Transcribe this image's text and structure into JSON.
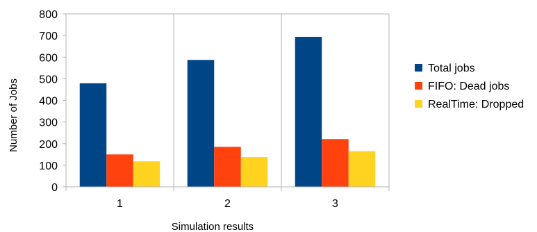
{
  "chart_data": {
    "type": "bar",
    "title": "",
    "xlabel": "Simulation results",
    "ylabel": "Number of Jobs",
    "categories": [
      "1",
      "2",
      "3"
    ],
    "series": [
      {
        "name": "Total jobs",
        "values": [
          479,
          587,
          694
        ],
        "color": "#004586"
      },
      {
        "name": "FIFO: Dead jobs",
        "values": [
          150,
          185,
          221
        ],
        "color": "#ff420e"
      },
      {
        "name": "RealTime: Dropped",
        "values": [
          118,
          138,
          165
        ],
        "color": "#ffd320"
      }
    ],
    "ylim": [
      0,
      800
    ],
    "yticks": [
      0,
      100,
      200,
      300,
      400,
      500,
      600,
      700,
      800
    ],
    "grid": "vertical lines between categories",
    "legend_position": "right"
  }
}
